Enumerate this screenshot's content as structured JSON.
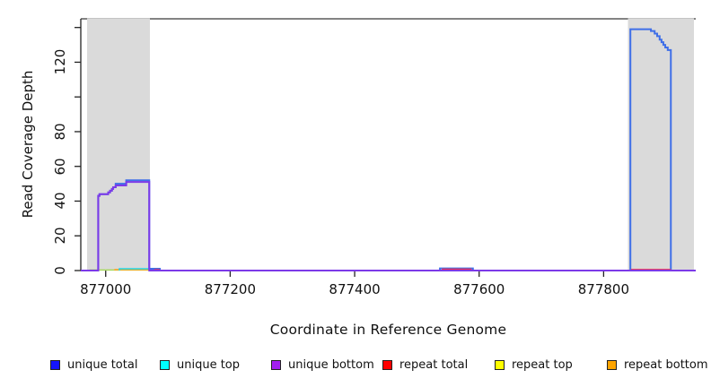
{
  "chart_data": {
    "type": "line",
    "title": "",
    "xlabel": "Coordinate in Reference Genome",
    "ylabel": "Read Coverage Depth",
    "x_range": [
      876960,
      877948
    ],
    "y_range": [
      0,
      145
    ],
    "x_ticks": [
      877000,
      877200,
      877400,
      877600,
      877800
    ],
    "y_ticks": [
      {
        "value": 0,
        "label": "0"
      },
      {
        "value": 20,
        "label": "20"
      },
      {
        "value": 40,
        "label": "40"
      },
      {
        "value": 60,
        "label": "60"
      },
      {
        "value": 80,
        "label": "80"
      },
      {
        "value": 100,
        "label": ""
      },
      {
        "value": 120,
        "label": "120"
      },
      {
        "value": 140,
        "label": ""
      }
    ],
    "grid": false,
    "legend_position": "bottom",
    "shaded_regions": [
      {
        "x0": 876970,
        "x1": 877071,
        "color": "#dadada"
      },
      {
        "x0": 877839,
        "x1": 877945,
        "color": "#dadada"
      }
    ],
    "series": [
      {
        "name": "repeat top",
        "line_color": "#a8d860",
        "line_width": 1.5,
        "segments": [
          [
            [
              876974,
              0.3
            ],
            [
              877085,
              0.3
            ]
          ]
        ]
      },
      {
        "name": "repeat bottom",
        "line_color": "#ffa020",
        "line_width": 1.5,
        "segments": [
          [
            [
              877015,
              0
            ],
            [
              877015,
              0.5
            ],
            [
              877078,
              0.5
            ],
            [
              877078,
              0
            ]
          ]
        ]
      },
      {
        "name": "unique top",
        "line_color": "#22d8e8",
        "line_width": 1.5,
        "segments": [
          [
            [
              877022,
              0
            ],
            [
              877022,
              1
            ],
            [
              877082,
              1
            ],
            [
              877082,
              0
            ]
          ]
        ]
      },
      {
        "name": "unique total",
        "line_color": "#3f6fe8",
        "line_width": 2,
        "segments": [
          [
            [
              876960,
              0
            ],
            [
              876988,
              0
            ],
            [
              876988,
              43
            ],
            [
              876990,
              43
            ],
            [
              876990,
              44
            ],
            [
              877004,
              44
            ],
            [
              877004,
              45
            ],
            [
              877007,
              45
            ],
            [
              877007,
              46
            ],
            [
              877010,
              46
            ],
            [
              877010,
              47
            ],
            [
              877012,
              47
            ],
            [
              877012,
              48
            ],
            [
              877016,
              48
            ],
            [
              877016,
              50
            ],
            [
              877033,
              50
            ],
            [
              877033,
              52
            ],
            [
              877070,
              52
            ],
            [
              877070,
              1
            ],
            [
              877087,
              1
            ],
            [
              877087,
              0
            ],
            [
              877537,
              0
            ],
            [
              877537,
              1.2
            ],
            [
              877590,
              1.2
            ],
            [
              877590,
              0
            ],
            [
              877843,
              0
            ],
            [
              877843,
              139
            ],
            [
              877876,
              139
            ],
            [
              877876,
              138
            ],
            [
              877882,
              138
            ],
            [
              877882,
              136.5
            ],
            [
              877886,
              136.5
            ],
            [
              877886,
              135
            ],
            [
              877890,
              135
            ],
            [
              877890,
              133
            ],
            [
              877893,
              133
            ],
            [
              877893,
              131.5
            ],
            [
              877896,
              131.5
            ],
            [
              877896,
              130
            ],
            [
              877899,
              130
            ],
            [
              877899,
              128.5
            ],
            [
              877903,
              128.5
            ],
            [
              877903,
              127
            ],
            [
              877908,
              127
            ],
            [
              877908,
              0
            ],
            [
              877948,
              0
            ]
          ]
        ]
      },
      {
        "name": "repeat total",
        "line_color": "#f03050",
        "line_width": 1.5,
        "segments": [
          [
            [
              877078,
              0.5
            ],
            [
              877087,
              0.5
            ]
          ],
          [
            [
              877540,
              0.8
            ],
            [
              877588,
              0.8
            ]
          ],
          [
            [
              877844,
              0.6
            ],
            [
              877908,
              0.6
            ]
          ]
        ]
      },
      {
        "name": "unique bottom",
        "line_color": "#7c3ae8",
        "line_width": 2,
        "segments": [
          [
            [
              876960,
              0
            ],
            [
              876988,
              0
            ],
            [
              876988,
              43
            ],
            [
              876990,
              43
            ],
            [
              876990,
              44
            ],
            [
              877004,
              44
            ],
            [
              877004,
              45
            ],
            [
              877007,
              45
            ],
            [
              877007,
              46
            ],
            [
              877010,
              46
            ],
            [
              877010,
              47
            ],
            [
              877012,
              47
            ],
            [
              877012,
              48
            ],
            [
              877016,
              48
            ],
            [
              877016,
              49
            ],
            [
              877033,
              49
            ],
            [
              877033,
              51
            ],
            [
              877070,
              51
            ],
            [
              877070,
              0
            ],
            [
              877948,
              0
            ]
          ]
        ]
      }
    ],
    "box_top_color": "#5a5a5a",
    "axis_color": "#222222"
  },
  "legend": {
    "items": [
      {
        "label": "unique total",
        "color": "#1414ff"
      },
      {
        "label": "unique top",
        "color": "#00ffff"
      },
      {
        "label": "unique bottom",
        "color": "#a21ff0"
      },
      {
        "label": "repeat total",
        "color": "#ff0000"
      },
      {
        "label": "repeat top",
        "color": "#ffff00"
      },
      {
        "label": "repeat bottom",
        "color": "#ffa500"
      }
    ]
  }
}
